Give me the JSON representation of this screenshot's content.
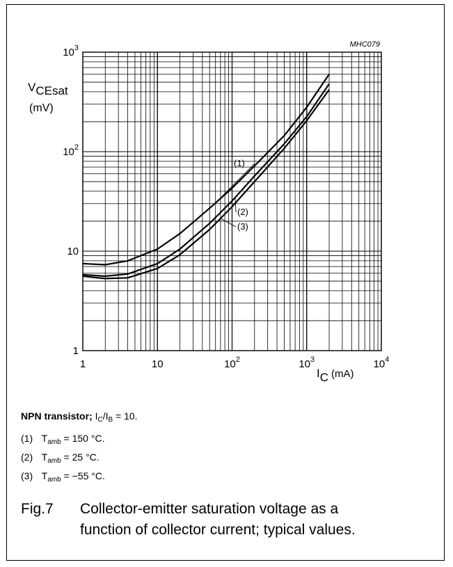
{
  "chart_data": {
    "type": "line",
    "code": "MHC079",
    "ylabel_main": "V",
    "ylabel_sub": "CEsat",
    "yunit": "(mV)",
    "xlabel_main": "I",
    "xlabel_sub": "C",
    "xunit": "(mA)",
    "x_scale": "log",
    "y_scale": "log",
    "xlim": [
      1,
      10000
    ],
    "ylim": [
      1,
      1000
    ],
    "grid": true,
    "x_ticks": [
      {
        "value": 1,
        "label": "1",
        "exp": ""
      },
      {
        "value": 10,
        "label": "10",
        "exp": ""
      },
      {
        "value": 100,
        "label": "10",
        "exp": "2"
      },
      {
        "value": 1000,
        "label": "10",
        "exp": "3"
      },
      {
        "value": 10000,
        "label": "10",
        "exp": "4"
      }
    ],
    "y_ticks": [
      {
        "value": 1,
        "label": "1",
        "exp": ""
      },
      {
        "value": 10,
        "label": "10",
        "exp": ""
      },
      {
        "value": 100,
        "label": "10",
        "exp": "2"
      },
      {
        "value": 1000,
        "label": "10",
        "exp": "3"
      }
    ],
    "series": [
      {
        "name": "(1)",
        "x": [
          1,
          2,
          4,
          10,
          20,
          50,
          100,
          200,
          500,
          1000,
          2000
        ],
        "y": [
          7.5,
          7.3,
          8.0,
          10.5,
          15,
          27,
          43,
          72,
          145,
          280,
          600
        ]
      },
      {
        "name": "(2)",
        "x": [
          1,
          2,
          4,
          10,
          20,
          50,
          100,
          200,
          500,
          1000,
          2000
        ],
        "y": [
          5.8,
          5.6,
          5.9,
          7.5,
          10.5,
          19,
          32,
          57,
          120,
          225,
          480
        ]
      },
      {
        "name": "(3)",
        "x": [
          1,
          2,
          4,
          10,
          20,
          50,
          100,
          200,
          500,
          1000,
          2000
        ],
        "y": [
          5.6,
          5.3,
          5.4,
          6.7,
          9.2,
          16.5,
          28,
          50,
          108,
          205,
          420
        ]
      }
    ]
  },
  "legend": {
    "header_bold": "NPN transistor;",
    "ratio_I1": "I",
    "ratio_sub1": "C",
    "ratio_slash": "/I",
    "ratio_sub2": "B",
    "ratio_rest": "= 10.",
    "items": [
      {
        "num": "(1)",
        "t": "T",
        "sub": "amb",
        "value": "= 150 °C."
      },
      {
        "num": "(2)",
        "t": "T",
        "sub": "amb",
        "value": "= 25 °C."
      },
      {
        "num": "(3)",
        "t": "T",
        "sub": "amb",
        "value": "= −55 °C."
      }
    ]
  },
  "caption": {
    "fig": "Fig.7",
    "text": "Collector-emitter saturation voltage as a function of collector current; typical values."
  }
}
